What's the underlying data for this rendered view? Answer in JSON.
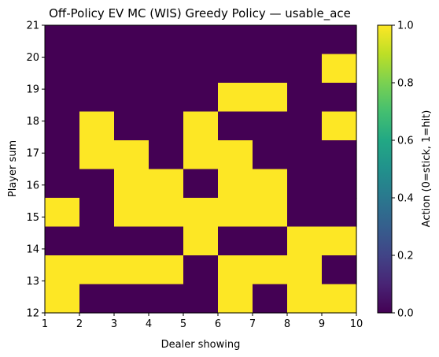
{
  "chart_data": {
    "type": "heatmap",
    "title": "Off-Policy EV MC (WIS) Greedy Policy — usable_ace",
    "xlabel": "Dealer showing",
    "ylabel": "Player sum",
    "colorbar_label": "Action (0=stick, 1=hit)",
    "x_range": [
      1,
      10
    ],
    "y_range": [
      12,
      21
    ],
    "x_ticks": [
      "1",
      "2",
      "3",
      "4",
      "5",
      "6",
      "7",
      "8",
      "9",
      "10"
    ],
    "y_ticks": [
      "12",
      "13",
      "14",
      "15",
      "16",
      "17",
      "18",
      "19",
      "20",
      "21"
    ],
    "colorbar_ticks": [
      "0.0",
      "0.2",
      "0.4",
      "0.6",
      "0.8",
      "1.0"
    ],
    "colorbar_range": [
      0.0,
      1.0
    ],
    "colormap": "viridis",
    "color_low": "#440154",
    "color_high": "#fde725",
    "columns": 9,
    "rows_top_to_bottom": [
      {
        "player_sum_band": "20-21",
        "values": [
          0,
          0,
          0,
          0,
          0,
          0,
          0,
          0,
          0
        ]
      },
      {
        "player_sum_band": "19-20",
        "values": [
          0,
          0,
          0,
          0,
          0,
          0,
          0,
          0,
          1
        ]
      },
      {
        "player_sum_band": "18-19",
        "values": [
          0,
          0,
          0,
          0,
          0,
          1,
          1,
          0,
          0
        ]
      },
      {
        "player_sum_band": "17-18",
        "values": [
          0,
          1,
          0,
          0,
          1,
          0,
          0,
          0,
          1
        ]
      },
      {
        "player_sum_band": "16-17",
        "values": [
          0,
          1,
          1,
          0,
          1,
          1,
          0,
          0,
          0
        ]
      },
      {
        "player_sum_band": "15-16",
        "values": [
          0,
          0,
          1,
          1,
          0,
          1,
          1,
          0,
          0
        ]
      },
      {
        "player_sum_band": "14-15",
        "values": [
          1,
          0,
          1,
          1,
          1,
          1,
          1,
          0,
          0
        ]
      },
      {
        "player_sum_band": "13-14",
        "values": [
          0,
          0,
          0,
          0,
          1,
          0,
          0,
          1,
          1
        ]
      },
      {
        "player_sum_band": "12-13",
        "values": [
          1,
          1,
          1,
          1,
          0,
          1,
          1,
          1,
          0
        ]
      },
      {
        "player_sum_band": "11-12",
        "values": [
          1,
          0,
          0,
          0,
          0,
          1,
          0,
          1,
          1
        ]
      }
    ]
  }
}
